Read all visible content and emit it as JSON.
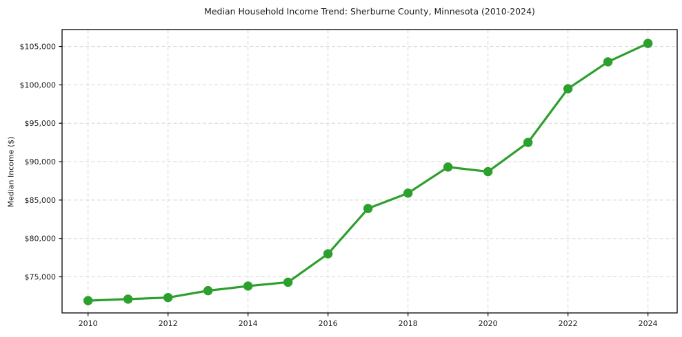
{
  "chart_data": {
    "type": "line",
    "title": "Median Household Income Trend: Sherburne County, Minnesota (2010-2024)",
    "xlabel": "",
    "ylabel": "Median Income ($)",
    "series_name": "Median Household Income",
    "x": [
      2010,
      2011,
      2012,
      2013,
      2014,
      2015,
      2016,
      2017,
      2018,
      2019,
      2020,
      2021,
      2022,
      2023,
      2024
    ],
    "values": [
      71900,
      72100,
      72300,
      73200,
      73800,
      74300,
      78000,
      83900,
      85900,
      89300,
      88700,
      92500,
      99500,
      103000,
      105400
    ],
    "xlim": [
      2009.35,
      2024.73
    ],
    "ylim": [
      70300,
      107200
    ],
    "xticks": [
      2010,
      2012,
      2014,
      2016,
      2018,
      2020,
      2022,
      2024
    ],
    "xtick_labels": [
      "2010",
      "2012",
      "2014",
      "2016",
      "2018",
      "2020",
      "2022",
      "2024"
    ],
    "yticks": [
      75000,
      80000,
      85000,
      90000,
      95000,
      100000,
      105000
    ],
    "ytick_labels": [
      "$75,000",
      "$80,000",
      "$85,000",
      "$90,000",
      "$95,000",
      "$100,000",
      "$105,000"
    ],
    "grid": "dashed",
    "legend": "none",
    "line_color": "#2ca02c",
    "marker": "circle",
    "marker_radius": 6.7,
    "line_width": 3.2,
    "grid_color": "#d5d5d5",
    "axis_color": "#000000",
    "text_color": "#1a1a1a"
  }
}
